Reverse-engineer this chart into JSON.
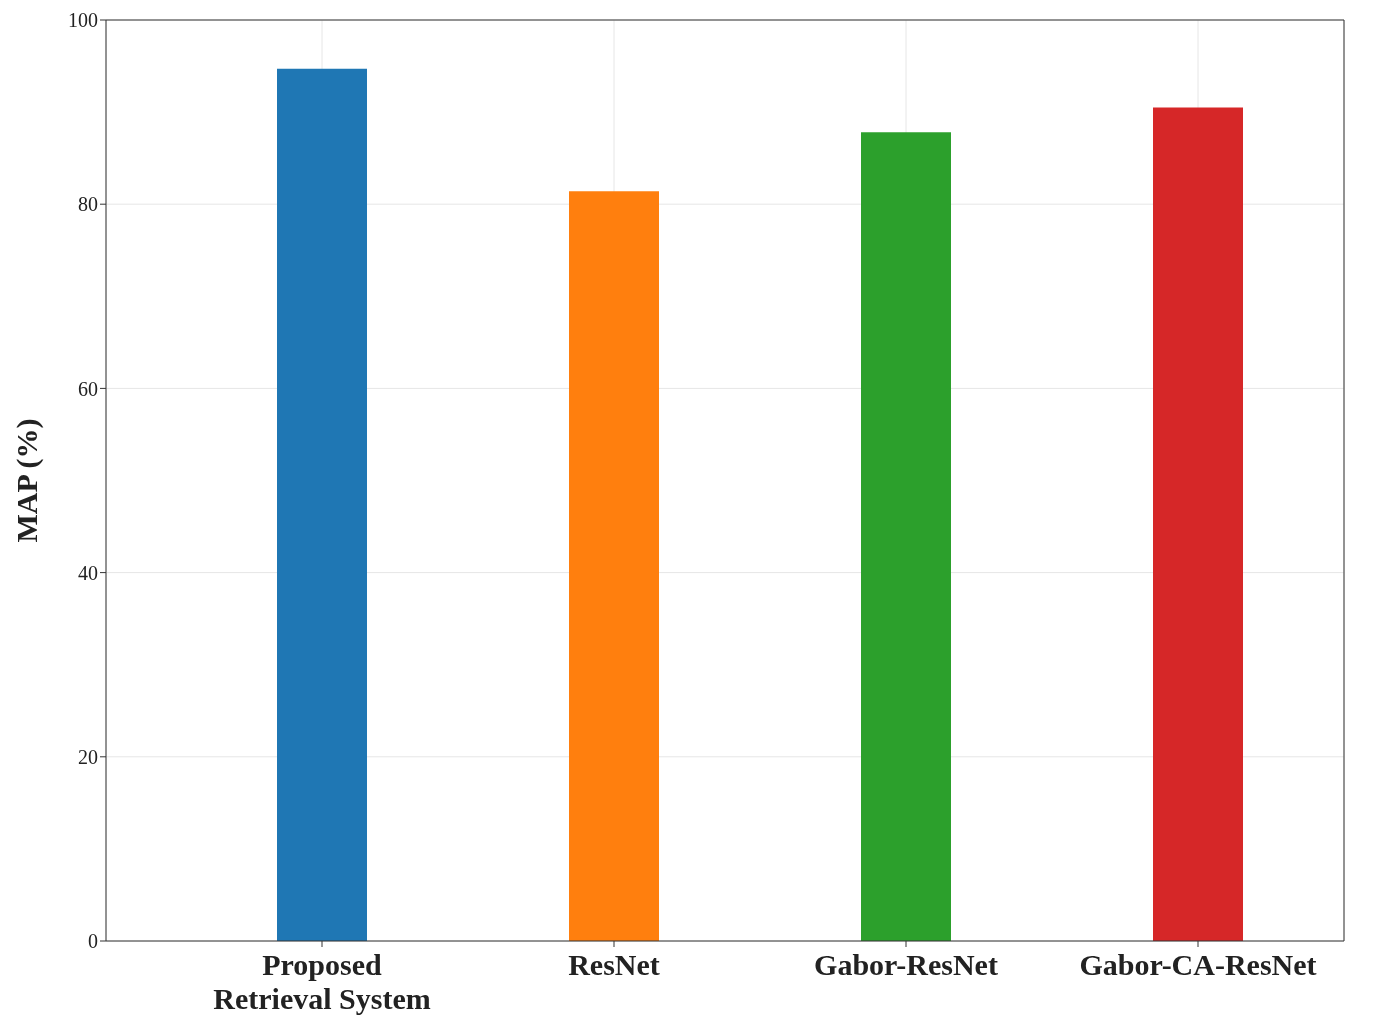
{
  "chart_data": {
    "type": "bar",
    "ylabel": "MAP (%)",
    "categories": [
      "Proposed Retrieval System",
      "ResNet",
      "Gabor-ResNet",
      "Gabor-CA-ResNet"
    ],
    "values": [
      94.7,
      81.4,
      87.8,
      90.5
    ],
    "colors": [
      "#1f77b4",
      "#ff7f0e",
      "#2ca02c",
      "#d62728"
    ],
    "ylim": [
      0,
      100
    ],
    "yticks": [
      0,
      20,
      40,
      60,
      80,
      100
    ],
    "grid": true
  }
}
